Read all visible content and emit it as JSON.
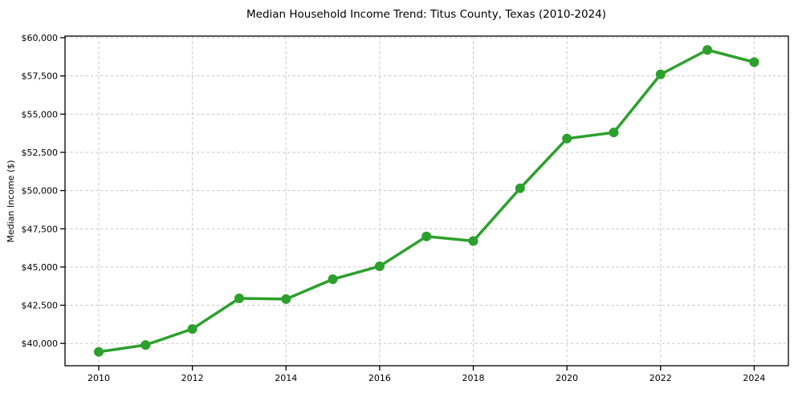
{
  "figure": {
    "background": "#ffffff"
  },
  "chart_data": {
    "type": "line",
    "title": "Median Household Income Trend: Titus County, Texas (2010-2024)",
    "xlabel": "",
    "ylabel": "Median Income ($)",
    "x": [
      2010,
      2011,
      2012,
      2013,
      2014,
      2015,
      2016,
      2017,
      2018,
      2019,
      2020,
      2021,
      2022,
      2023,
      2024
    ],
    "series": [
      {
        "name": "Median Household Income",
        "values": [
          39450,
          39900,
          40950,
          42950,
          42900,
          44200,
          45050,
          47000,
          46700,
          50150,
          53400,
          53800,
          57600,
          59200,
          58400
        ],
        "color": "#2ca02c",
        "marker": "circle",
        "marker_radius": 6,
        "line_width": 3.5
      }
    ],
    "xlim": [
      2009.28,
      2024.73
    ],
    "ylim": [
      38542,
      60105
    ],
    "xticks": {
      "values": [
        2010,
        2012,
        2014,
        2016,
        2018,
        2020,
        2022,
        2024
      ],
      "labels": [
        "2010",
        "2012",
        "2014",
        "2016",
        "2018",
        "2020",
        "2022",
        "2024"
      ]
    },
    "yticks": {
      "values": [
        40000,
        42500,
        45000,
        47500,
        50000,
        52500,
        55000,
        57500,
        60000
      ],
      "labels": [
        "$40,000",
        "$42,500",
        "$45,000",
        "$47,500",
        "$50,000",
        "$52,500",
        "$55,000",
        "$57,500",
        "$60,000"
      ]
    },
    "grid": "both",
    "grid_line_style": "dashed",
    "legend_position": "none",
    "colors": {
      "line": "#2ca02c",
      "grid": "#c9c9c9",
      "spine": "#000000",
      "text": "#000000",
      "background": "#ffffff"
    }
  }
}
